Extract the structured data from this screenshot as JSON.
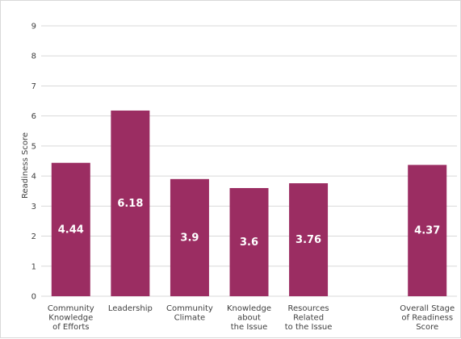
{
  "chart_data": {
    "type": "bar",
    "ylabel": "Readiness Score",
    "xlabel": "",
    "ylim": [
      0,
      9
    ],
    "yticks": [
      0,
      1,
      2,
      3,
      4,
      5,
      6,
      7,
      8,
      9
    ],
    "grid": true,
    "bar_color": "#9b2d62",
    "categories": [
      [
        "Community",
        "Knowledge",
        "of Efforts"
      ],
      [
        "Leadership"
      ],
      [
        "Community",
        "Climate"
      ],
      [
        "Knowledge",
        "about",
        "the Issue"
      ],
      [
        "Resources",
        "Related",
        "to the Issue"
      ],
      [
        "Overall Stage",
        "of Readiness",
        "Score"
      ]
    ],
    "values": [
      4.44,
      6.18,
      3.9,
      3.6,
      3.76,
      4.37
    ],
    "value_labels": [
      "4.44",
      "6.18",
      "3.9",
      "3.6",
      "3.76",
      "4.37"
    ],
    "slots": [
      0,
      1,
      2,
      3,
      4,
      6
    ]
  }
}
